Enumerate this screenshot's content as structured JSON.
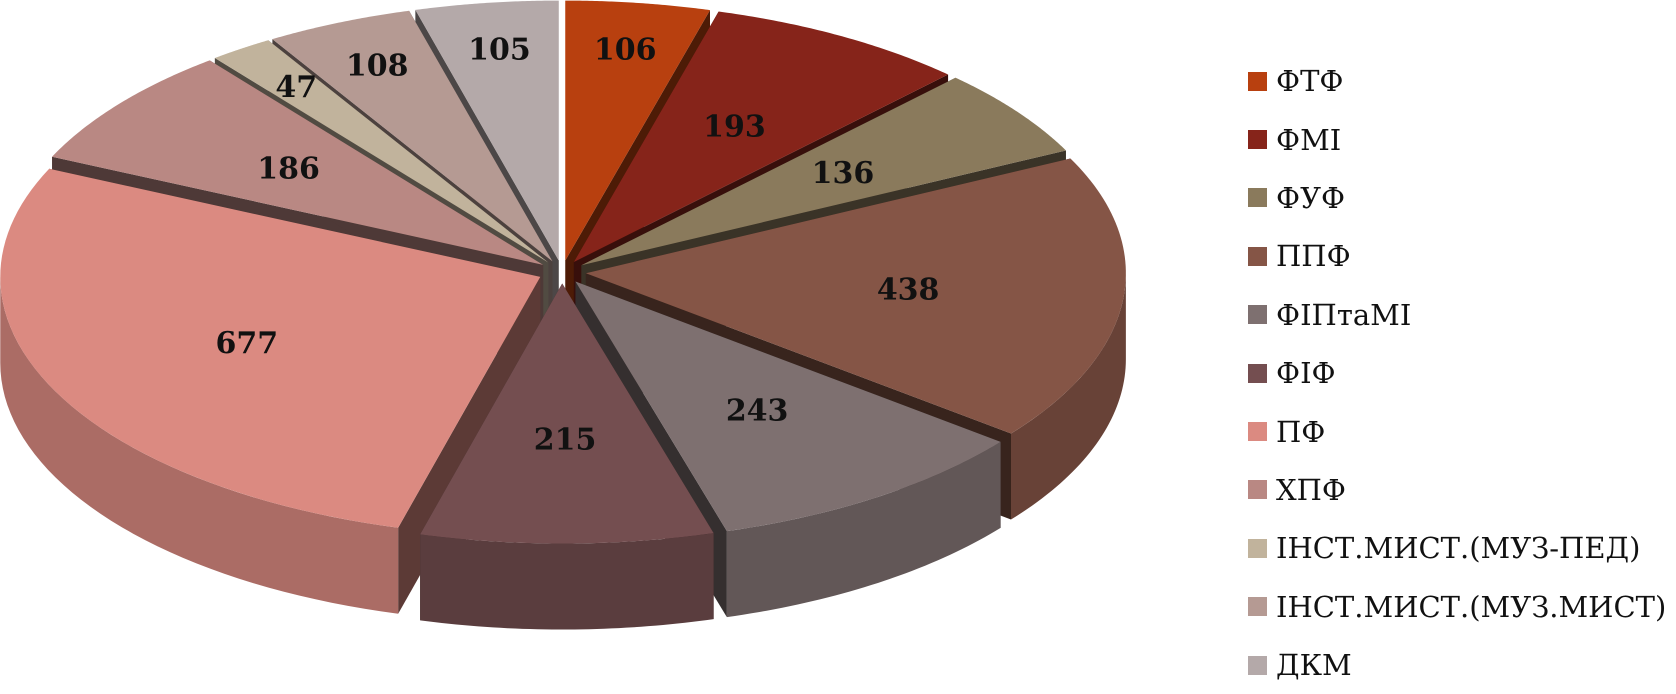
{
  "chart_data": {
    "type": "pie",
    "style": "3d-exploded",
    "legend_position": "right",
    "slices": [
      {
        "label": "ФТФ",
        "value": 106,
        "color": "#B8400F"
      },
      {
        "label": "ФМІ",
        "value": 193,
        "color": "#86241A"
      },
      {
        "label": "ФУФ",
        "value": 136,
        "color": "#8A7A5C"
      },
      {
        "label": "ППФ",
        "value": 438,
        "color": "#855546"
      },
      {
        "label": "ФІПтаМІ",
        "value": 243,
        "color": "#7E7070"
      },
      {
        "label": "ФІФ",
        "value": 215,
        "color": "#744E50"
      },
      {
        "label": "ПФ",
        "value": 677,
        "color": "#DB8A81"
      },
      {
        "label": "ХПФ",
        "value": 186,
        "color": "#B98883"
      },
      {
        "label": "ІНСТ.МИСТ.(МУЗ-ПЕД)",
        "value": 47,
        "color": "#C1B39C"
      },
      {
        "label": "ІНСТ.МИСТ.(МУЗ.МИСТ)",
        "value": 108,
        "color": "#B59A93"
      },
      {
        "label": "ДКМ",
        "value": 105,
        "color": "#B4A9A9"
      }
    ]
  }
}
